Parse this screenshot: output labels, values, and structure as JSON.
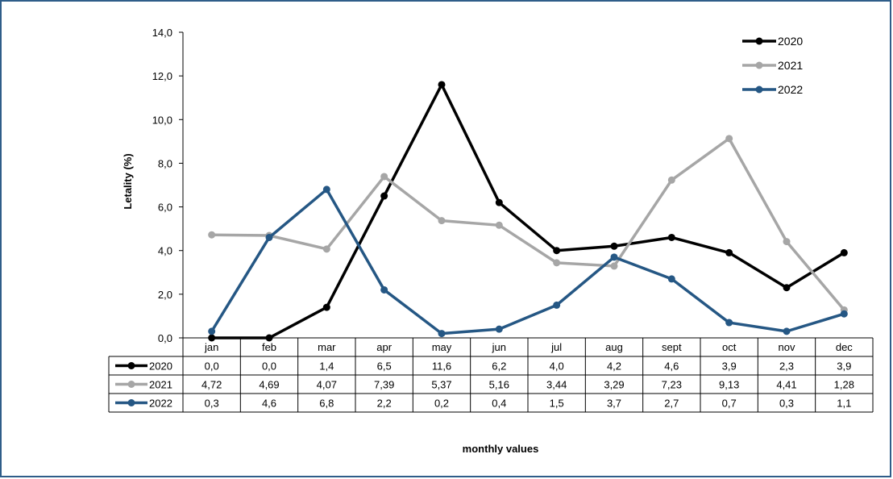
{
  "chart_data": {
    "type": "line",
    "title": "",
    "xlabel": "monthly values",
    "ylabel": "Letality (%)",
    "ylim": [
      0,
      14
    ],
    "y_ticks": [
      "0,0",
      "2,0",
      "4,0",
      "6,0",
      "8,0",
      "10,0",
      "12,0",
      "14,0"
    ],
    "grid": false,
    "legend_position": "top-right",
    "categories": [
      "jan",
      "feb",
      "mar",
      "apr",
      "may",
      "jun",
      "jul",
      "aug",
      "sept",
      "oct",
      "nov",
      "dec"
    ],
    "series": [
      {
        "name": "2020",
        "color": "#000000",
        "values": [
          0.0,
          0.0,
          1.4,
          6.5,
          11.6,
          6.2,
          4.0,
          4.2,
          4.6,
          3.9,
          2.3,
          3.9
        ],
        "labels": [
          "0,0",
          "0,0",
          "1,4",
          "6,5",
          "11,6",
          "6,2",
          "4,0",
          "4,2",
          "4,6",
          "3,9",
          "2,3",
          "3,9"
        ]
      },
      {
        "name": "2021",
        "color": "#a6a6a6",
        "values": [
          4.72,
          4.69,
          4.07,
          7.39,
          5.37,
          5.16,
          3.44,
          3.29,
          7.23,
          9.13,
          4.41,
          1.28
        ],
        "labels": [
          "4,72",
          "4,69",
          "4,07",
          "7,39",
          "5,37",
          "5,16",
          "3,44",
          "3,29",
          "7,23",
          "9,13",
          "4,41",
          "1,28"
        ]
      },
      {
        "name": "2022",
        "color": "#255784",
        "values": [
          0.3,
          4.6,
          6.8,
          2.2,
          0.2,
          0.4,
          1.5,
          3.7,
          2.7,
          0.7,
          0.3,
          1.1
        ],
        "labels": [
          "0,3",
          "4,6",
          "6,8",
          "2,2",
          "0,2",
          "0,4",
          "1,5",
          "3,7",
          "2,7",
          "0,7",
          "0,3",
          "1,1"
        ]
      }
    ]
  }
}
